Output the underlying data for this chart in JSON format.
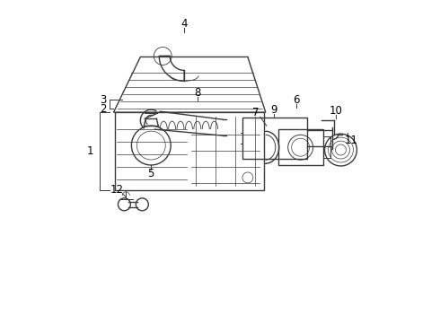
{
  "bg_color": "#ffffff",
  "line_color": "#3a3a3a",
  "label_color": "#000000",
  "figsize": [
    4.9,
    3.6
  ],
  "dpi": 100
}
